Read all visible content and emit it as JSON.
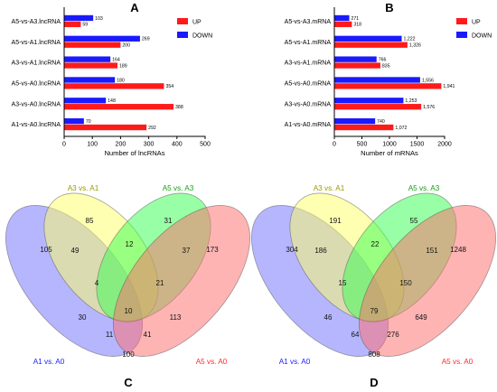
{
  "colors": {
    "up": "#ff1a1a",
    "down": "#1a1aff"
  },
  "legend": {
    "up": "UP",
    "down": "DOWN"
  },
  "chart_data": [
    {
      "type": "bar",
      "orientation": "horizontal",
      "title": "A",
      "xlabel": "Number of lncRNAs",
      "xlim": [
        0,
        500
      ],
      "xticks": [
        0,
        100,
        200,
        300,
        400,
        500
      ],
      "categories": [
        "A5-vs-A3.lncRNA",
        "A5-vs-A1.lncRNA",
        "A3-vs-A1.lncRNA",
        "A5-vs-A0.lncRNA",
        "A3-vs-A0.lncRNA",
        "A1-vs-A0.lncRNA"
      ],
      "series": [
        {
          "name": "UP",
          "values": [
            59,
            200,
            189,
            354,
            388,
            292
          ],
          "labels": [
            "59",
            "200",
            "189",
            "354",
            "388",
            "292"
          ]
        },
        {
          "name": "DOWN",
          "values": [
            103,
            269,
            164,
            180,
            148,
            70
          ],
          "labels": [
            "103",
            "269",
            "164",
            "180",
            "148",
            "70"
          ]
        }
      ],
      "legend_position": "top-right"
    },
    {
      "type": "bar",
      "orientation": "horizontal",
      "title": "B",
      "xlabel": "Number of mRNAs",
      "xlim": [
        0,
        2000
      ],
      "xticks": [
        0,
        500,
        1000,
        1500,
        2000
      ],
      "categories": [
        "A5-vs-A3.mRNA",
        "A5-vs-A1.mRNA",
        "A3-vs-A1.mRNA",
        "A5-vs-A0.mRNA",
        "A3-vs-A0.mRNA",
        "A1-vs-A0.mRNA"
      ],
      "series": [
        {
          "name": "UP",
          "values": [
            318,
            1326,
            835,
            1941,
            1576,
            1072
          ],
          "labels": [
            "318",
            "1,326",
            "835",
            "1,941",
            "1,576",
            "1,072"
          ]
        },
        {
          "name": "DOWN",
          "values": [
            271,
            1222,
            766,
            1556,
            1253,
            740
          ],
          "labels": [
            "271",
            "1,222",
            "766",
            "1,556",
            "1,253",
            "740"
          ]
        }
      ],
      "legend_position": "top-right"
    }
  ],
  "venns": [
    {
      "title": "C",
      "sets": [
        {
          "label": "A1 vs. A0",
          "color": "#2020ff"
        },
        {
          "label": "A3 vs. A1",
          "color": "#9a9a00"
        },
        {
          "label": "A5 vs. A3",
          "color": "#14a014"
        },
        {
          "label": "A5 vs. A0",
          "color": "#ff2a2a"
        }
      ],
      "regions": {
        "A1": "105",
        "A3": "85",
        "A5_A3": "31",
        "A5_A0": "173",
        "A1_A3": "49",
        "A3_A5A3": "12",
        "A5A3_A5A0": "37",
        "A1_A3_A5A3": "4",
        "A3_A5A3_A5A0": "21",
        "A1_A5A3": "30",
        "A3_A5A0": "113",
        "all": "10",
        "A1_A5A3_A5A0": "11",
        "A1_A3_A5A0": "41",
        "A1_A5A0": "100"
      }
    },
    {
      "title": "D",
      "sets": [
        {
          "label": "A1 vs. A0",
          "color": "#2020ff"
        },
        {
          "label": "A3 vs. A1",
          "color": "#9a9a00"
        },
        {
          "label": "A5 vs. A3",
          "color": "#14a014"
        },
        {
          "label": "A5 vs. A0",
          "color": "#ff2a2a"
        }
      ],
      "regions": {
        "A1": "304",
        "A3": "191",
        "A5_A3": "55",
        "A5_A0": "1248",
        "A1_A3": "186",
        "A3_A5A3": "22",
        "A5A3_A5A0": "151",
        "A1_A3_A5A3": "15",
        "A3_A5A3_A5A0": "150",
        "A1_A5A3": "46",
        "A3_A5A0": "649",
        "all": "79",
        "A1_A5A3_A5A0": "64",
        "A1_A3_A5A0": "276",
        "A1_A5A0": "808"
      }
    }
  ]
}
